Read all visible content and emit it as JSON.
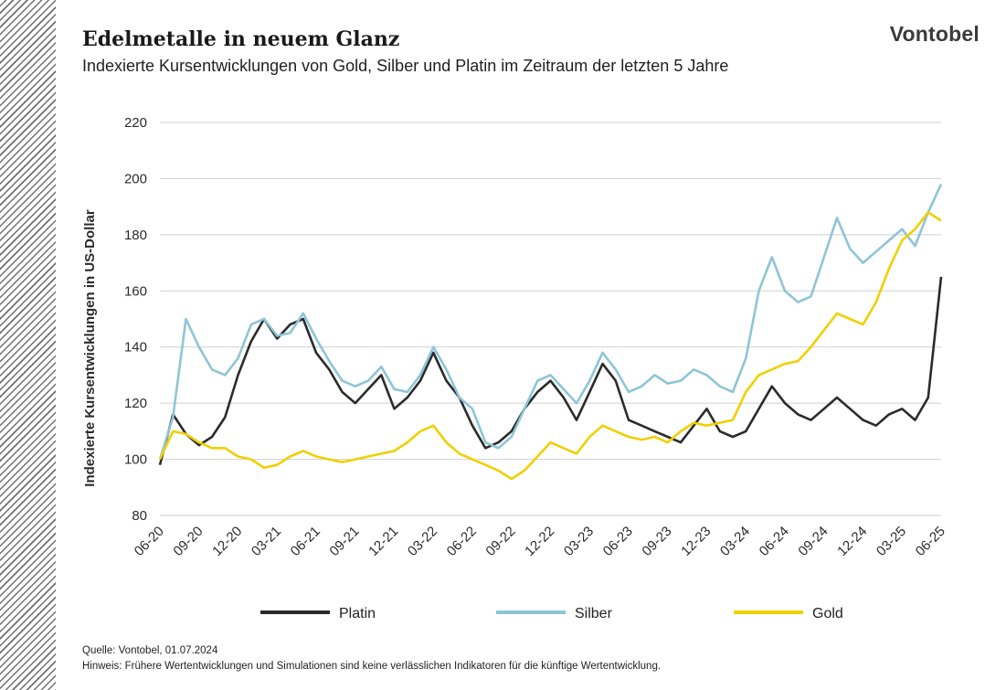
{
  "header": {
    "title": "Edelmetalle in neuem Glanz",
    "subtitle": "Indexierte Kursentwicklungen von Gold, Silber und Platin im Zeitraum der letzten 5 Jahre",
    "brand": "Vontobel"
  },
  "footer": {
    "source": "Quelle: Vontobel, 01.07.2024",
    "note": "Hinweis:  Frühere Wertentwicklungen und Simulationen sind keine verlässlichen Indikatoren für die künftige Wertentwicklung."
  },
  "chart_data": {
    "type": "line",
    "ylabel": "Indexierte Kursentwicklungen in US-Dollar",
    "xlabel": "",
    "ylim": [
      80,
      220
    ],
    "yticks": [
      "80",
      "100",
      "120",
      "140",
      "160",
      "180",
      "200",
      "220"
    ],
    "x": [
      "06-20",
      "07-20",
      "08-20",
      "09-20",
      "10-20",
      "11-20",
      "12-20",
      "01-21",
      "02-21",
      "03-21",
      "04-21",
      "05-21",
      "06-21",
      "07-21",
      "08-21",
      "09-21",
      "10-21",
      "11-21",
      "12-21",
      "01-22",
      "02-22",
      "03-22",
      "04-22",
      "05-22",
      "06-22",
      "07-22",
      "08-22",
      "09-22",
      "10-22",
      "11-22",
      "12-22",
      "01-23",
      "02-23",
      "03-23",
      "04-23",
      "05-23",
      "06-23",
      "07-23",
      "08-23",
      "09-23",
      "10-23",
      "11-23",
      "12-23",
      "01-24",
      "02-24",
      "03-24",
      "04-24",
      "05-24",
      "06-24",
      "07-24",
      "08-24",
      "09-24",
      "10-24",
      "11-24",
      "12-24",
      "01-25",
      "02-25",
      "03-25",
      "04-25",
      "05-25",
      "06-25"
    ],
    "xtick_labels": [
      "06-20",
      "09-20",
      "12-20",
      "03-21",
      "06-21",
      "09-21",
      "12-21",
      "03-22",
      "06-22",
      "09-22",
      "12-22",
      "03-23",
      "06-23",
      "09-23",
      "12-23",
      "03-24",
      "06-24",
      "09-24",
      "12-24",
      "03-25",
      "06-25"
    ],
    "grid": "horizontal",
    "legend": "bottom",
    "series": [
      {
        "name": "Platin",
        "color": "#2b2b2b",
        "values": [
          98,
          116,
          109,
          105,
          108,
          115,
          130,
          142,
          150,
          143,
          148,
          150,
          138,
          132,
          124,
          120,
          125,
          130,
          118,
          122,
          128,
          138,
          128,
          122,
          112,
          104,
          106,
          110,
          118,
          124,
          128,
          122,
          114,
          124,
          134,
          128,
          114,
          112,
          110,
          108,
          106,
          112,
          118,
          110,
          108,
          110,
          118,
          126,
          120,
          116,
          114,
          118,
          122,
          118,
          114,
          112,
          116,
          118,
          114,
          122,
          165
        ]
      },
      {
        "name": "Silber",
        "color": "#8ec5d6",
        "values": [
          100,
          115,
          150,
          140,
          132,
          130,
          136,
          148,
          150,
          144,
          145,
          152,
          143,
          135,
          128,
          126,
          128,
          133,
          125,
          124,
          130,
          140,
          132,
          122,
          118,
          106,
          104,
          108,
          118,
          128,
          130,
          125,
          120,
          128,
          138,
          132,
          124,
          126,
          130,
          127,
          128,
          132,
          130,
          126,
          124,
          136,
          160,
          172,
          160,
          156,
          158,
          172,
          186,
          175,
          170,
          174,
          178,
          182,
          176,
          188,
          198
        ]
      },
      {
        "name": "Gold",
        "color": "#f0d000",
        "values": [
          100,
          110,
          109,
          106,
          104,
          104,
          101,
          100,
          97,
          98,
          101,
          103,
          101,
          100,
          99,
          100,
          101,
          102,
          103,
          106,
          110,
          112,
          106,
          102,
          100,
          98,
          96,
          93,
          96,
          101,
          106,
          104,
          102,
          108,
          112,
          110,
          108,
          107,
          108,
          106,
          110,
          113,
          112,
          113,
          114,
          124,
          130,
          132,
          134,
          135,
          140,
          146,
          152,
          150,
          148,
          156,
          168,
          178,
          182,
          188,
          185
        ]
      }
    ]
  }
}
